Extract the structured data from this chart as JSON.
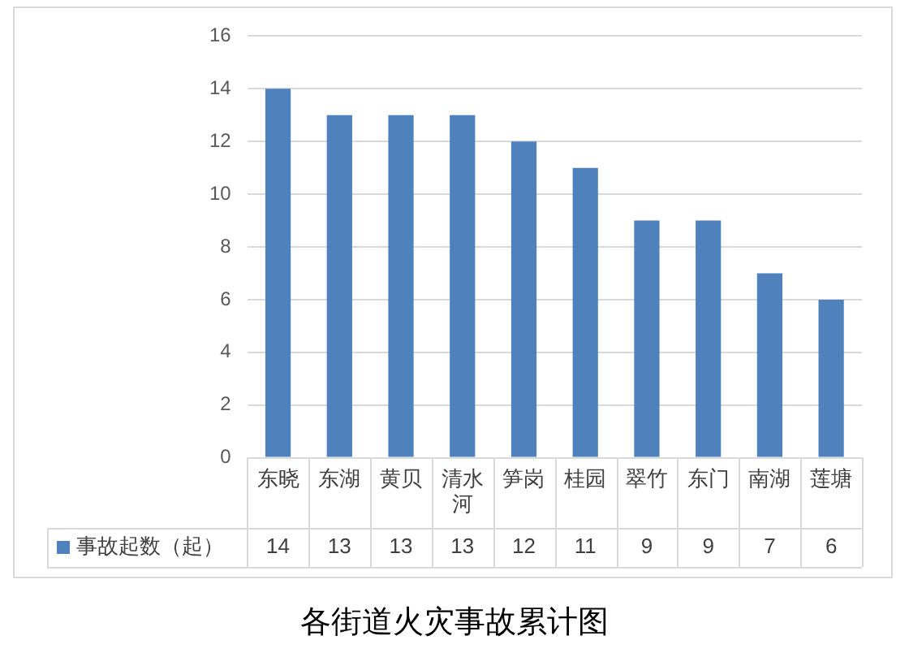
{
  "chart_data": {
    "type": "bar",
    "title": "各街道火灾事故累计图",
    "categories": [
      "东晓",
      "东湖",
      "黄贝",
      "清水河",
      "笋岗",
      "桂园",
      "翠竹",
      "东门",
      "南湖",
      "莲塘"
    ],
    "series": [
      {
        "name": "事故起数（起）",
        "color": "#4f81bd",
        "values": [
          14,
          13,
          13,
          13,
          12,
          11,
          9,
          9,
          7,
          6
        ]
      }
    ],
    "ylim": [
      0,
      16
    ],
    "yticks": [
      0,
      2,
      4,
      6,
      8,
      10,
      12,
      14,
      16
    ],
    "grid": "y",
    "legend": "bottom",
    "data_labels": true
  }
}
